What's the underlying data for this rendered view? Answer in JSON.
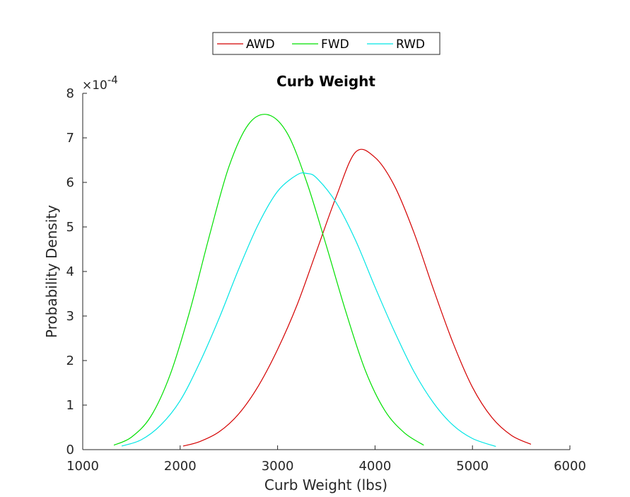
{
  "chart_data": {
    "type": "line",
    "title": "Curb Weight",
    "xlabel": "Curb Weight (lbs)",
    "ylabel": "Probability Density",
    "xlim": [
      1000,
      6000
    ],
    "ylim": [
      0,
      8
    ],
    "y_multiplier": "×10",
    "y_exponent": "-4",
    "xticks": [
      1000,
      2000,
      3000,
      4000,
      5000,
      6000
    ],
    "yticks": [
      0,
      1,
      2,
      3,
      4,
      5,
      6,
      7,
      8
    ],
    "grid": false,
    "legend_position": "top-outside",
    "series": [
      {
        "name": "AWD",
        "color": "#d40000",
        "x": [
          2030,
          2200,
          2400,
          2600,
          2800,
          3000,
          3200,
          3400,
          3600,
          3800,
          4000,
          4200,
          4400,
          4600,
          4800,
          5000,
          5200,
          5400,
          5600
        ],
        "y": [
          0.08,
          0.18,
          0.4,
          0.8,
          1.42,
          2.25,
          3.25,
          4.46,
          5.67,
          6.68,
          6.56,
          5.92,
          4.87,
          3.6,
          2.4,
          1.4,
          0.72,
          0.32,
          0.12
        ]
      },
      {
        "name": "FWD",
        "color": "#00e000",
        "x": [
          1320,
          1500,
          1700,
          1900,
          2100,
          2300,
          2500,
          2700,
          2900,
          3100,
          3300,
          3500,
          3700,
          3900,
          4100,
          4300,
          4500
        ],
        "y": [
          0.1,
          0.28,
          0.75,
          1.7,
          3.12,
          4.8,
          6.35,
          7.3,
          7.52,
          7.1,
          6.0,
          4.58,
          3.1,
          1.78,
          0.88,
          0.38,
          0.1
        ]
      },
      {
        "name": "RWD",
        "color": "#00e5e5",
        "x": [
          1400,
          1600,
          1800,
          2000,
          2200,
          2400,
          2600,
          2800,
          3000,
          3200,
          3300,
          3400,
          3600,
          3800,
          4000,
          4200,
          4400,
          4600,
          4800,
          5000,
          5240
        ],
        "y": [
          0.08,
          0.22,
          0.55,
          1.1,
          1.95,
          2.95,
          4.05,
          5.05,
          5.8,
          6.17,
          6.2,
          6.1,
          5.55,
          4.7,
          3.65,
          2.65,
          1.75,
          1.05,
          0.55,
          0.25,
          0.07
        ]
      }
    ]
  }
}
